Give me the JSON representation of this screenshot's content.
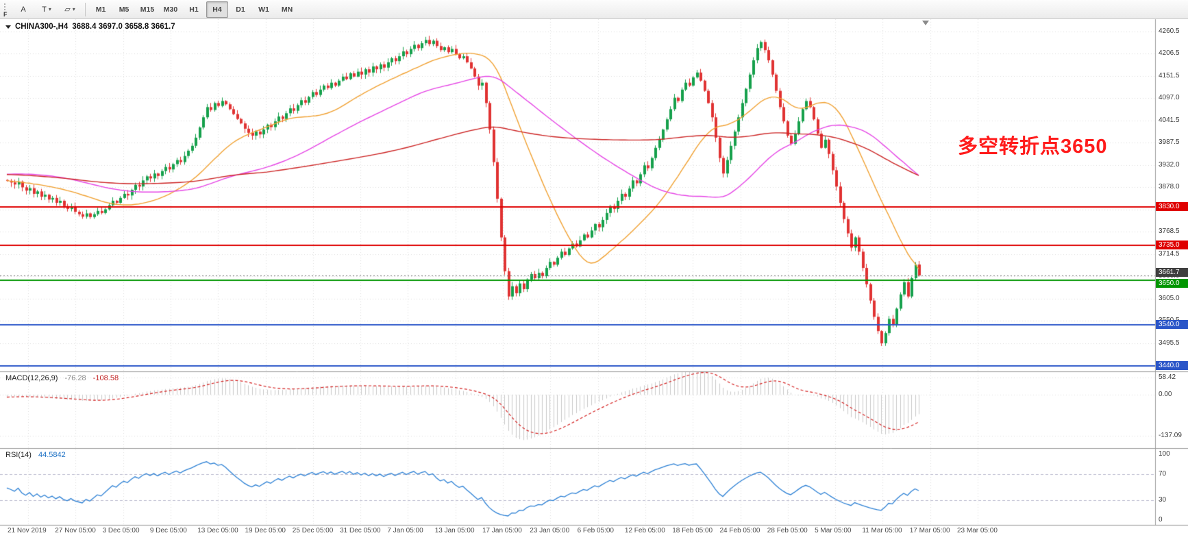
{
  "toolbar": {
    "f_label": "F",
    "tools": [
      {
        "name": "text-label-tool",
        "icon": "A",
        "caret": false
      },
      {
        "name": "text-tool",
        "icon": "T",
        "caret": true
      },
      {
        "name": "shapes-tool",
        "icon": "▱",
        "caret": true
      }
    ],
    "timeframes": [
      {
        "label": "M1",
        "active": false
      },
      {
        "label": "M5",
        "active": false
      },
      {
        "label": "M15",
        "active": false
      },
      {
        "label": "M30",
        "active": false
      },
      {
        "label": "H1",
        "active": false
      },
      {
        "label": "H4",
        "active": true
      },
      {
        "label": "D1",
        "active": false
      },
      {
        "label": "W1",
        "active": false
      },
      {
        "label": "MN",
        "active": false
      }
    ]
  },
  "chart": {
    "title_symbol": "CHINA300-,H4",
    "title_ohlc": "3688.4 3697.0 3658.8 3661.7",
    "annotation": {
      "text": "多空转折点3650",
      "color": "#ff1b1b"
    }
  },
  "macd_panel": {
    "label": "MACD(12,26,9)",
    "main_value": "-76.28",
    "signal_value": "-108.58"
  },
  "rsi_panel": {
    "label": "RSI(14)",
    "value": "44.5842"
  },
  "chart_data": {
    "type": "candlestick",
    "symbol": "CHINA300-",
    "period": "H4",
    "current_bar": {
      "open": 3688.4,
      "high": 3697.0,
      "low": 3658.8,
      "close": 3661.7
    },
    "y_axis": {
      "max": 4291,
      "min": 3426,
      "ticks": [
        {
          "label": "4260.5",
          "value": 4260.5
        },
        {
          "label": "4206.5",
          "value": 4206.5
        },
        {
          "label": "4151.5",
          "value": 4151.5
        },
        {
          "label": "4097.0",
          "value": 4097.0
        },
        {
          "label": "4041.5",
          "value": 4041.5
        },
        {
          "label": "3987.5",
          "value": 3987.5
        },
        {
          "label": "3932.0",
          "value": 3932.0
        },
        {
          "label": "3878.0",
          "value": 3878.0
        },
        {
          "label": "3823.5",
          "value": 3823.5
        },
        {
          "label": "3768.5",
          "value": 3768.5
        },
        {
          "label": "3714.5",
          "value": 3714.5
        },
        {
          "label": "3660.0",
          "value": 3660.0
        },
        {
          "label": "3605.0",
          "value": 3605.0
        },
        {
          "label": "3550.5",
          "value": 3550.5
        },
        {
          "label": "3495.5",
          "value": 3495.5
        },
        {
          "label": "3441.0",
          "value": 3441.0
        }
      ]
    },
    "x_axis": {
      "labels": [
        "21 Nov 2019",
        "27 Nov 05:00",
        "3 Dec 05:00",
        "9 Dec 05:00",
        "13 Dec 05:00",
        "19 Dec 05:00",
        "25 Dec 05:00",
        "31 Dec 05:00",
        "7 Jan 05:00",
        "13 Jan 05:00",
        "17 Jan 05:00",
        "23 Jan 05:00",
        "6 Feb 05:00",
        "12 Feb 05:00",
        "18 Feb 05:00",
        "24 Feb 05:00",
        "28 Feb 05:00",
        "5 Mar 05:00",
        "11 Mar 05:00",
        "17 Mar 05:00",
        "23 Mar 05:00"
      ]
    },
    "horizontal_lines": [
      {
        "value": 3830.0,
        "label": "3830.0",
        "color": "#df0000",
        "width": 2,
        "badge_dy": 0
      },
      {
        "value": 3735.0,
        "label": "3735.0",
        "color": "#df0000",
        "width": 2,
        "badge_dy": 0
      },
      {
        "value": 3650.0,
        "label": "3650.0",
        "color": "#009600",
        "width": 2,
        "badge_dy": 5
      },
      {
        "value": 3540.0,
        "label": "3540.0",
        "color": "#2a55c8",
        "width": 2,
        "badge_dy": 0
      },
      {
        "value": 3440.0,
        "label": "3440.0",
        "color": "#2a55c8",
        "width": 2,
        "badge_dy": 0
      }
    ],
    "current_price_badge": {
      "label": "3661.7",
      "value": 3661.7,
      "color": "#3f3f3f",
      "badge_dy": -4
    },
    "moving_averages": [
      {
        "period": 25,
        "color": "#f0a030"
      },
      {
        "period": 60,
        "color": "#e544e5"
      },
      {
        "period": 130,
        "color": "#cc2424"
      }
    ],
    "macd": {
      "fast": 12,
      "slow": 26,
      "signal": 9,
      "scale_max": 78,
      "scale_min": -178,
      "ticks": [
        {
          "label": "58.42",
          "value": 58.42
        },
        {
          "label": "0.00",
          "value": 0
        },
        {
          "label": "-137.09",
          "value": -137.09
        }
      ]
    },
    "rsi": {
      "period": 14,
      "ticks": [
        {
          "label": "100",
          "value": 100
        },
        {
          "label": "70",
          "value": 70
        },
        {
          "label": "30",
          "value": 30
        },
        {
          "label": "0",
          "value": 0
        }
      ],
      "levels": [
        70,
        30
      ]
    },
    "colors": {
      "up": "#16a04c",
      "down": "#e03232",
      "macd_histogram": "#c9c9c9",
      "macd_signal": "#d42020",
      "rsi_line": "#2a7fd4",
      "grid": "#dcdcdc"
    },
    "pre_closes": [
      3868,
      3872,
      3880,
      3876,
      3885,
      3890,
      3884,
      3895,
      3902,
      3898,
      3908,
      3915,
      3910,
      3920,
      3928,
      3922,
      3932,
      3938,
      3930,
      3942,
      3948,
      3940,
      3950,
      3944,
      3952,
      3946,
      3955,
      3948,
      3942,
      3935,
      3940,
      3932,
      3925,
      3930,
      3922,
      3915,
      3920,
      3912,
      3905,
      3910,
      3902,
      3896,
      3905,
      3898,
      3892,
      3900,
      3894,
      3888,
      3896,
      3890,
      3885,
      3892,
      3886,
      3880,
      3888,
      3882,
      3876,
      3884,
      3890,
      3896
    ],
    "closes": [
      3894,
      3890,
      3885,
      3892,
      3878,
      3870,
      3876,
      3862,
      3868,
      3855,
      3860,
      3848,
      3852,
      3840,
      3845,
      3832,
      3825,
      3830,
      3818,
      3812,
      3806,
      3814,
      3805,
      3812,
      3820,
      3815,
      3824,
      3834,
      3845,
      3840,
      3852,
      3862,
      3858,
      3872,
      3884,
      3880,
      3895,
      3905,
      3900,
      3912,
      3906,
      3918,
      3928,
      3922,
      3935,
      3945,
      3940,
      3955,
      3968,
      3980,
      4000,
      4025,
      4050,
      4075,
      4068,
      4085,
      4078,
      4090,
      4082,
      4070,
      4058,
      4046,
      4035,
      4022,
      4012,
      4005,
      4015,
      4008,
      4020,
      4032,
      4026,
      4040,
      4052,
      4046,
      4060,
      4072,
      4066,
      4080,
      4092,
      4086,
      4100,
      4112,
      4105,
      4118,
      4128,
      4122,
      4135,
      4128,
      4140,
      4150,
      4144,
      4158,
      4150,
      4162,
      4155,
      4168,
      4160,
      4175,
      4168,
      4180,
      4172,
      4185,
      4195,
      4188,
      4200,
      4212,
      4205,
      4218,
      4228,
      4220,
      4232,
      4240,
      4230,
      4238,
      4225,
      4215,
      4222,
      4210,
      4218,
      4205,
      4195,
      4200,
      4185,
      4170,
      4150,
      4128,
      4135,
      4085,
      4020,
      3940,
      3850,
      3755,
      3672,
      3610,
      3635,
      3618,
      3642,
      3628,
      3652,
      3665,
      3655,
      3668,
      3660,
      3680,
      3695,
      3688,
      3705,
      3720,
      3712,
      3728,
      3740,
      3733,
      3748,
      3762,
      3755,
      3772,
      3788,
      3780,
      3798,
      3815,
      3832,
      3825,
      3845,
      3862,
      3855,
      3875,
      3895,
      3888,
      3910,
      3932,
      3925,
      3950,
      3975,
      3995,
      4020,
      4045,
      4070,
      4098,
      4090,
      4118,
      4135,
      4128,
      4148,
      4160,
      4140,
      4115,
      4085,
      4050,
      4000,
      3950,
      3912,
      3945,
      3980,
      4015,
      4050,
      4085,
      4120,
      4155,
      4190,
      4220,
      4235,
      4215,
      4190,
      4155,
      4115,
      4075,
      4040,
      4005,
      3985,
      4010,
      4040,
      4070,
      4090,
      4075,
      4045,
      4010,
      3975,
      3995,
      3960,
      3920,
      3880,
      3840,
      3800,
      3765,
      3730,
      3755,
      3720,
      3680,
      3640,
      3600,
      3560,
      3525,
      3495,
      3520,
      3555,
      3540,
      3580,
      3615,
      3645,
      3610,
      3655,
      3688,
      3661.7
    ]
  }
}
